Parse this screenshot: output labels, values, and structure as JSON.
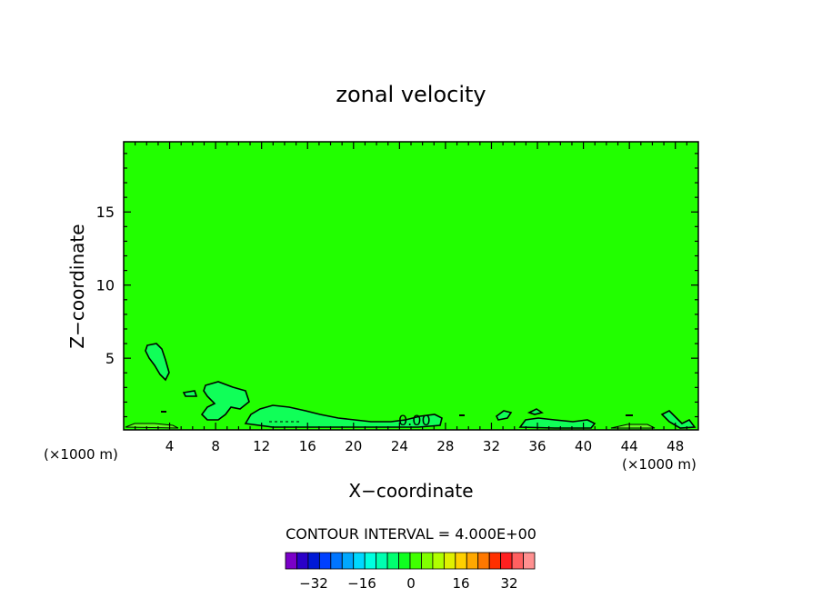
{
  "chart_data": {
    "type": "heatmap",
    "title": "zonal velocity",
    "xlabel": "X−coordinate",
    "ylabel": "Z−coordinate",
    "x_unit_left": "(×1000 m)",
    "x_unit_right": "(×1000 m)",
    "x_ticks": [
      4,
      8,
      12,
      16,
      20,
      24,
      28,
      32,
      36,
      40,
      44,
      48
    ],
    "y_ticks": [
      5,
      10,
      15
    ],
    "xlim": [
      0,
      50
    ],
    "ylim": [
      0.1,
      19.8
    ],
    "field_color": "#22ff00",
    "contour_label": "0.00",
    "contour_interval_text": "CONTOUR INTERVAL = 4.000E+00",
    "colorbar": {
      "colors": [
        "#7a00c8",
        "#2a00c8",
        "#0019d6",
        "#0040ff",
        "#0075ff",
        "#00a8ff",
        "#00d8ff",
        "#00ffe0",
        "#00ffb0",
        "#00ff70",
        "#10ff20",
        "#40ff00",
        "#80ff00",
        "#b0ff00",
        "#e0f000",
        "#ffd000",
        "#ffa800",
        "#ff7800",
        "#ff3000",
        "#ff2020",
        "#ff6060",
        "#ff9090"
      ],
      "tick_labels": [
        "−32",
        "−16",
        "0",
        "16",
        "32"
      ]
    }
  }
}
